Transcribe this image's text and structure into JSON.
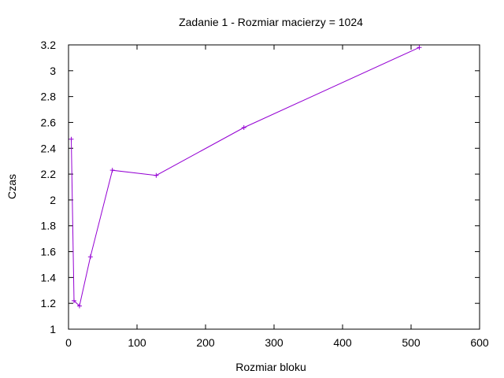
{
  "chart_data": {
    "type": "line",
    "title": "Zadanie 1 - Rozmiar macierzy = 1024",
    "xlabel": "Rozmiar bloku",
    "ylabel": "Czas",
    "xlim": [
      0,
      600
    ],
    "ylim": [
      1,
      3.2
    ],
    "xticks": [
      0,
      100,
      200,
      300,
      400,
      500,
      600
    ],
    "yticks": [
      1,
      1.2,
      1.4,
      1.6,
      1.8,
      2,
      2.2,
      2.4,
      2.6,
      2.8,
      3,
      3.2
    ],
    "xtick_labels": [
      "0",
      "100",
      "200",
      "300",
      "400",
      "500",
      "600"
    ],
    "ytick_labels": [
      "1",
      "1.2",
      "1.4",
      "1.6",
      "1.8",
      "2",
      "2.2",
      "2.4",
      "2.6",
      "2.8",
      "3",
      "3.2"
    ],
    "grid": false,
    "legend": "none",
    "series": [
      {
        "color": "#9400d3",
        "marker": "plus",
        "x": [
          4,
          8,
          16,
          32,
          64,
          128,
          256,
          512
        ],
        "y": [
          2.47,
          1.22,
          1.18,
          1.56,
          2.23,
          2.19,
          2.56,
          3.18
        ]
      }
    ]
  }
}
